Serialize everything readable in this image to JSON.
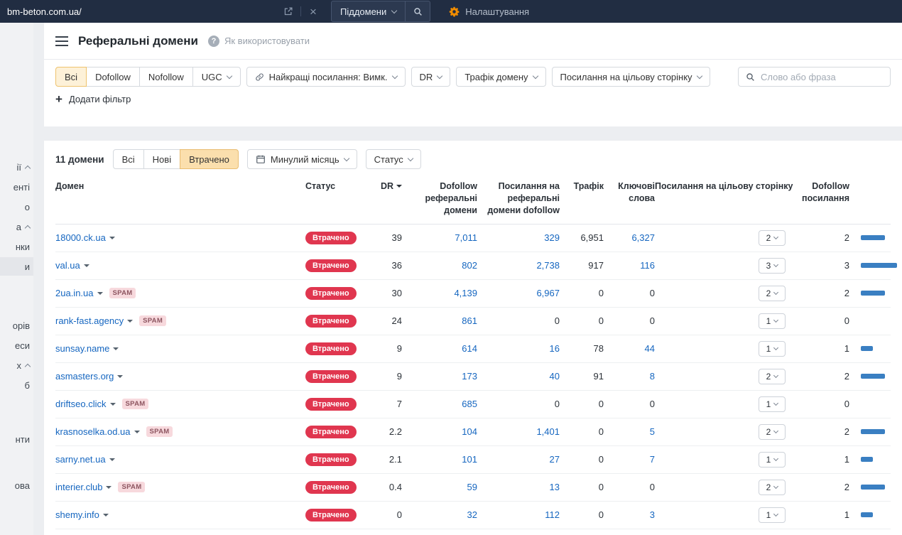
{
  "topbar": {
    "url": "bm-beton.com.ua/",
    "subdomains_button": "Піддомени",
    "settings_label": "Налаштування"
  },
  "sidebar": {
    "items": [
      {
        "label": "ії",
        "caret": true,
        "selected": false
      },
      {
        "label": "енті",
        "caret": false,
        "selected": false
      },
      {
        "label": "о",
        "caret": false,
        "selected": false
      },
      {
        "label": "а",
        "caret": true,
        "selected": false
      },
      {
        "label": "нки",
        "caret": false,
        "selected": false
      },
      {
        "label": "и",
        "caret": false,
        "selected": true
      },
      {
        "label": "орів",
        "caret": false,
        "selected": false
      },
      {
        "label": "еси",
        "caret": false,
        "selected": false
      },
      {
        "label": "х",
        "caret": true,
        "selected": false
      },
      {
        "label": "б",
        "caret": false,
        "selected": false
      },
      {
        "label": "нти",
        "caret": false,
        "selected": false
      },
      {
        "label": "ова",
        "caret": false,
        "selected": false
      }
    ]
  },
  "header": {
    "title": "Реферальні домени",
    "help_link": "Як використовувати"
  },
  "filters": {
    "type_tabs": [
      {
        "label": "Всі",
        "active": true,
        "caret": false
      },
      {
        "label": "Dofollow",
        "active": false,
        "caret": false
      },
      {
        "label": "Nofollow",
        "active": false,
        "caret": false
      },
      {
        "label": "UGC",
        "active": false,
        "caret": true
      }
    ],
    "best_links_label": "Найкращі посилання: Вимк.",
    "dr_label": "DR",
    "domain_traffic_label": "Трафік домену",
    "target_links_label": "Посилання на цільову сторінку",
    "search_placeholder": "Слово або фраза",
    "add_filter_label": "Додати фільтр"
  },
  "toolbar": {
    "count_label": "11 домени",
    "tabs": [
      {
        "label": "Всі",
        "active": false
      },
      {
        "label": "Нові",
        "active": false
      },
      {
        "label": "Втрачено",
        "active": true
      }
    ],
    "period_label": "Минулий місяць",
    "status_label": "Статус"
  },
  "table": {
    "headers": {
      "domain": "Домен",
      "status": "Статус",
      "dr": "DR",
      "dofollow_ref_domains": "Dofollow реферальні домени",
      "links_ref_domains_dofollow": "Посилання на реферальні домени dofollow",
      "traffic": "Трафік",
      "keywords": "Ключові слова",
      "target_links": "Посилання на цільову сторінку",
      "dofollow_links": "Dofollow посилання"
    },
    "labels": {
      "spam_badge": "SPAM"
    },
    "rows": [
      {
        "domain": "18000.ck.ua",
        "spam": false,
        "status": "Втрачено",
        "dr": "39",
        "dofollow_ref_domains": "7,011",
        "links_ref_domains_dofollow": "329",
        "traffic": "6,951",
        "keywords": "6,327",
        "target_links": "2",
        "dofollow_links": "2"
      },
      {
        "domain": "val.ua",
        "spam": false,
        "status": "Втрачено",
        "dr": "36",
        "dofollow_ref_domains": "802",
        "links_ref_domains_dofollow": "2,738",
        "traffic": "917",
        "keywords": "116",
        "target_links": "3",
        "dofollow_links": "3"
      },
      {
        "domain": "2ua.in.ua",
        "spam": true,
        "status": "Втрачено",
        "dr": "30",
        "dofollow_ref_domains": "4,139",
        "links_ref_domains_dofollow": "6,967",
        "traffic": "0",
        "keywords": "0",
        "target_links": "2",
        "dofollow_links": "2"
      },
      {
        "domain": "rank-fast.agency",
        "spam": true,
        "status": "Втрачено",
        "dr": "24",
        "dofollow_ref_domains": "861",
        "links_ref_domains_dofollow": "0",
        "traffic": "0",
        "keywords": "0",
        "target_links": "1",
        "dofollow_links": "0"
      },
      {
        "domain": "sunsay.name",
        "spam": false,
        "status": "Втрачено",
        "dr": "9",
        "dofollow_ref_domains": "614",
        "links_ref_domains_dofollow": "16",
        "traffic": "78",
        "keywords": "44",
        "target_links": "1",
        "dofollow_links": "1"
      },
      {
        "domain": "asmasters.org",
        "spam": false,
        "status": "Втрачено",
        "dr": "9",
        "dofollow_ref_domains": "173",
        "links_ref_domains_dofollow": "40",
        "traffic": "91",
        "keywords": "8",
        "target_links": "2",
        "dofollow_links": "2"
      },
      {
        "domain": "driftseo.click",
        "spam": true,
        "status": "Втрачено",
        "dr": "7",
        "dofollow_ref_domains": "685",
        "links_ref_domains_dofollow": "0",
        "traffic": "0",
        "keywords": "0",
        "target_links": "1",
        "dofollow_links": "0"
      },
      {
        "domain": "krasnoselka.od.ua",
        "spam": true,
        "status": "Втрачено",
        "dr": "2.2",
        "dofollow_ref_domains": "104",
        "links_ref_domains_dofollow": "1,401",
        "traffic": "0",
        "keywords": "5",
        "target_links": "2",
        "dofollow_links": "2"
      },
      {
        "domain": "sarny.net.ua",
        "spam": false,
        "status": "Втрачено",
        "dr": "2.1",
        "dofollow_ref_domains": "101",
        "links_ref_domains_dofollow": "27",
        "traffic": "0",
        "keywords": "7",
        "target_links": "1",
        "dofollow_links": "1"
      },
      {
        "domain": "interier.club",
        "spam": true,
        "status": "Втрачено",
        "dr": "0.4",
        "dofollow_ref_domains": "59",
        "links_ref_domains_dofollow": "13",
        "traffic": "0",
        "keywords": "0",
        "target_links": "2",
        "dofollow_links": "2"
      },
      {
        "domain": "shemy.info",
        "spam": false,
        "status": "Втрачено",
        "dr": "0",
        "dofollow_ref_domains": "32",
        "links_ref_domains_dofollow": "112",
        "traffic": "0",
        "keywords": "3",
        "target_links": "1",
        "dofollow_links": "1"
      }
    ]
  },
  "colors": {
    "topbar_bg": "#212d42",
    "gear_orange": "#f08c00",
    "lost_badge_red": "#e0364f",
    "spam_badge_bg": "#f7d9dd",
    "link_blue": "#1566c0",
    "bar_blue": "#3a7fc2",
    "active_filter_bg": "#fdf1d8",
    "active_filter_border": "#eec36e",
    "active_tab_bg": "#fbdfad"
  }
}
